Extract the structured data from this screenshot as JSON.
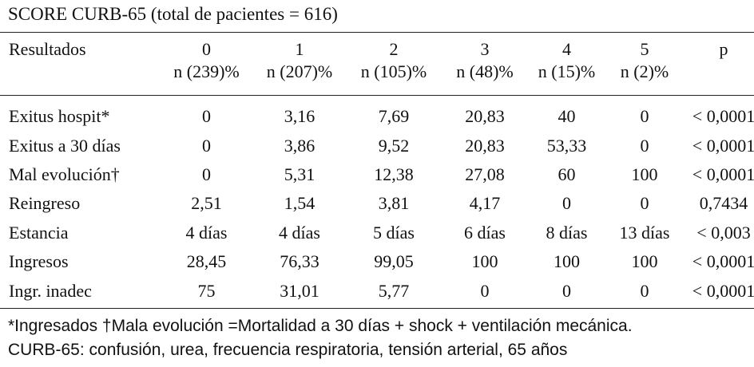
{
  "title": "SCORE CURB-65 (total de pacientes = 616)",
  "header": {
    "label": "Resultados",
    "scores": [
      "0",
      "1",
      "2",
      "3",
      "4",
      "5"
    ],
    "counts": [
      "n (239)%",
      "n (207)%",
      "n (105)%",
      "n (48)%",
      "n (15)%",
      "n (2)%"
    ],
    "p_label": "p"
  },
  "rows": [
    {
      "label": "Exitus hospit*",
      "values": [
        "0",
        "3,16",
        "7,69",
        "20,83",
        "40",
        "0"
      ],
      "p": "< 0,0001"
    },
    {
      "label": "Exitus a 30 días",
      "values": [
        "0",
        "3,86",
        "9,52",
        "20,83",
        "53,33",
        "0"
      ],
      "p": "< 0,0001"
    },
    {
      "label": "Mal evolución†",
      "values": [
        "0",
        "5,31",
        "12,38",
        "27,08",
        "60",
        "100"
      ],
      "p": "< 0,0001"
    },
    {
      "label": "Reingreso",
      "values": [
        "2,51",
        "1,54",
        "3,81",
        "4,17",
        "0",
        "0"
      ],
      "p": "0,7434"
    },
    {
      "label": "Estancia",
      "values": [
        "4 días",
        "4 días",
        "5 días",
        "6 días",
        "8 días",
        "13 días"
      ],
      "p": "< 0,003"
    },
    {
      "label": "Ingresos",
      "values": [
        "28,45",
        "76,33",
        "99,05",
        "100",
        "100",
        "100"
      ],
      "p": "< 0,0001"
    },
    {
      "label": "Ingr. inadec",
      "values": [
        "75",
        "31,01",
        "5,77",
        "0",
        "0",
        "0"
      ],
      "p": "< 0,0001"
    }
  ],
  "footnotes": [
    "*Ingresados †Mala evolución =Mortalidad a 30 días + shock + ventilación mecánica.",
    "CURB-65: confusión, urea, frecuencia respiratoria, tensión arterial, 65 años"
  ]
}
